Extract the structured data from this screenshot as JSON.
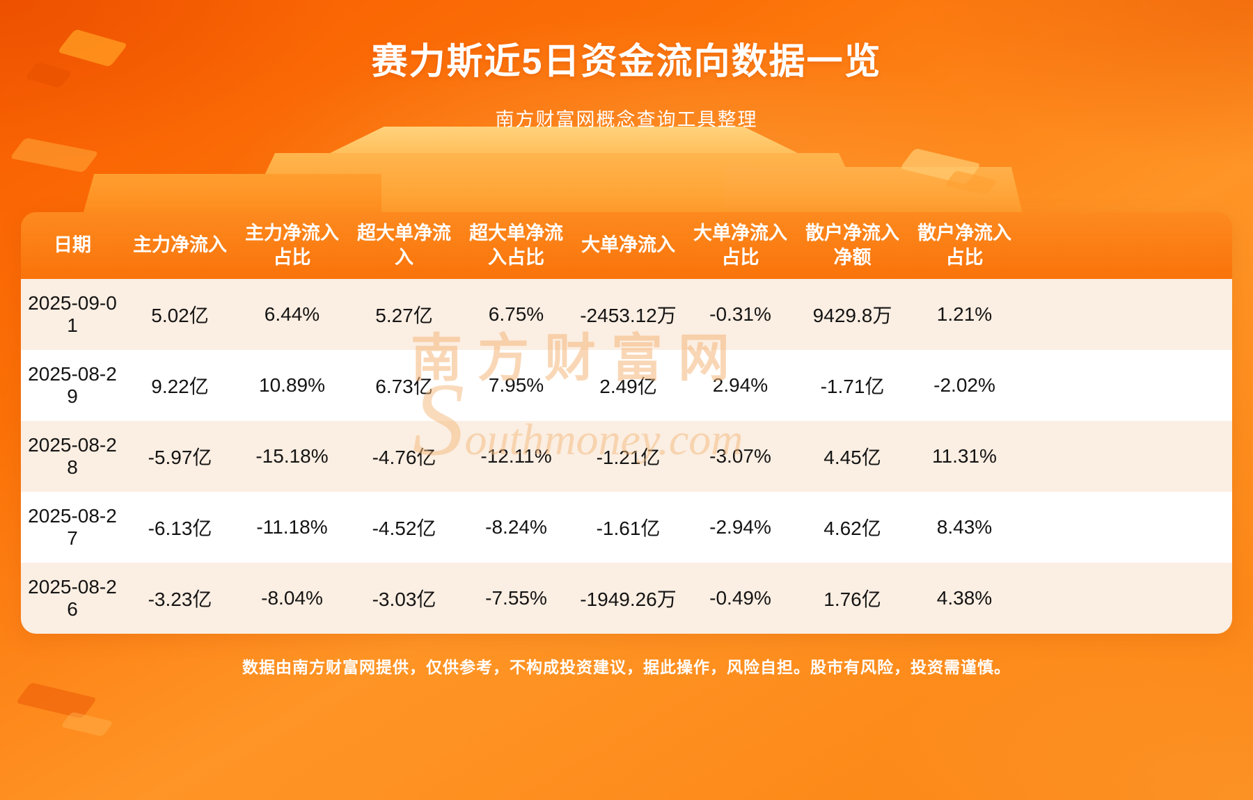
{
  "page": {
    "title": "赛力斯近5日资金流向数据一览",
    "subtitle": "南方财富网概念查询工具整理",
    "footer": "数据由南方财富网提供，仅供参考，不构成投资建议，据此操作，风险自担。股市有风险，投资需谨慎。",
    "watermark": {
      "cn": "南方财富网",
      "en": "Southmoney.com"
    }
  },
  "colors": {
    "background_orange": "#fb7108",
    "header_orange": "#f9730a",
    "row_alt_cream": "#fbeee2",
    "row_white": "#ffffff",
    "text_dark": "#141414",
    "text_white": "#ffffff",
    "watermark_tan": "#f4b77a"
  },
  "chart_data": {
    "type": "table",
    "title": "赛力斯近5日资金流向数据一览",
    "headers": [
      "日期",
      "主力净流入",
      "主力净流入占比",
      "超大单净流入",
      "超大单净流入占比",
      "大单净流入",
      "大单净流入占比",
      "散户净流入净额",
      "散户净流入占比"
    ],
    "rows": [
      [
        "2025-09-01",
        "5.02亿",
        "6.44%",
        "5.27亿",
        "6.75%",
        "-2453.12万",
        "-0.31%",
        "9429.8万",
        "1.21%"
      ],
      [
        "2025-08-29",
        "9.22亿",
        "10.89%",
        "6.73亿",
        "7.95%",
        "2.49亿",
        "2.94%",
        "-1.71亿",
        "-2.02%"
      ],
      [
        "2025-08-28",
        "-5.97亿",
        "-15.18%",
        "-4.76亿",
        "-12.11%",
        "-1.21亿",
        "-3.07%",
        "4.45亿",
        "11.31%"
      ],
      [
        "2025-08-27",
        "-6.13亿",
        "-11.18%",
        "-4.52亿",
        "-8.24%",
        "-1.61亿",
        "-2.94%",
        "4.62亿",
        "8.43%"
      ],
      [
        "2025-08-26",
        "-3.23亿",
        "-8.04%",
        "-3.03亿",
        "-7.55%",
        "-1949.26万",
        "-0.49%",
        "1.76亿",
        "4.38%"
      ]
    ]
  }
}
